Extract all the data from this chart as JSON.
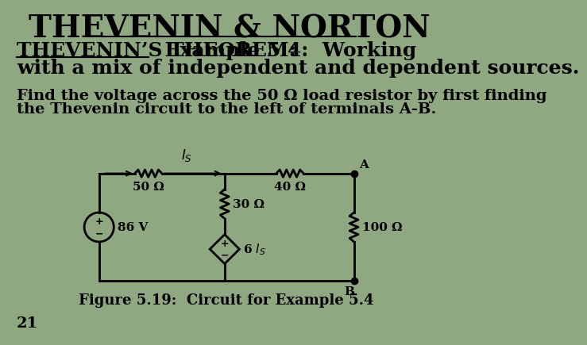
{
  "background_color": "#8fa882",
  "title": "THEVENIN & NORTON",
  "title_fontsize": 28,
  "subtitle_bold": "THEVENIN’S THEOREM:",
  "subtitle_rest": "  Example 5.4:  Working",
  "subtitle_line2": "with a mix of independent and dependent sources.",
  "subtitle_fontsize": 18,
  "body_line1": "Find the voltage across the 50 Ω load resistor by first finding",
  "body_line2": "the Thevenin circuit to the left of terminals A-B.",
  "body_fontsize": 14,
  "caption": "Figure 5.19:  Circuit for Example 5.4",
  "caption_fontsize": 13,
  "slide_number": "21",
  "slide_number_fontsize": 14,
  "r50_label": "50 Ω",
  "r40_label": "40 Ω",
  "r30_label": "30 Ω",
  "r100_label": "100 Ω",
  "vs_label": "86 V",
  "dep_label": "6 I",
  "is_label": "I",
  "terminal_a": "A",
  "terminal_b": "B"
}
